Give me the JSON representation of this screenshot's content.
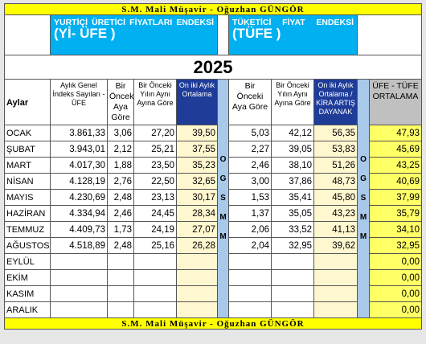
{
  "header": {
    "top": "S.M. Mali Müşavir   - Oğuzhan GÜNGÖR"
  },
  "left_box": {
    "title": "YURTİÇİ ÜRETİCİ FİYATLARI ENDEKSİ",
    "code": "(Yİ- ÜFE )"
  },
  "right_box": {
    "title": "TÜKETİCİ FİYAT ENDEKSİ",
    "code": "(TÜFE )"
  },
  "year": "2025",
  "columns": [
    "Aylar",
    "Aylık Genel İndeks Sayıları - ÜFE",
    "Bir Önceki Aya Göre",
    "Bir Önceki Yılın Aynı Ayına Göre",
    "On iki Aylık Ortalama",
    "Bir Önceki Aya Göre",
    "Bir Önceki Yılın Aynı Ayına Göre",
    "On iki Aylık Ortalama / KİRA ARTIŞ DAYANAK",
    "ÜFE - TÜFE ORTALAMA"
  ],
  "gap_columns": [
    {
      "letters": [
        "O",
        "G",
        "S",
        "M",
        "M"
      ]
    },
    {
      "letters": [
        "O",
        "G",
        "S",
        "M",
        "M"
      ]
    }
  ],
  "rows": [
    {
      "month": "OCAK",
      "values": [
        "3.861,33",
        "3,06",
        "27,20",
        "39,50",
        "5,03",
        "42,12",
        "56,35",
        "47,93"
      ]
    },
    {
      "month": "ŞUBAT",
      "values": [
        "3.943,01",
        "2,12",
        "25,21",
        "37,55",
        "2,27",
        "39,05",
        "53,83",
        "45,69"
      ]
    },
    {
      "month": "MART",
      "values": [
        "4.017,30",
        "1,88",
        "23,50",
        "35,23",
        "2,46",
        "38,10",
        "51,26",
        "43,25"
      ]
    },
    {
      "month": "NİSAN",
      "values": [
        "4.128,19",
        "2,76",
        "22,50",
        "32,65",
        "3,00",
        "37,86",
        "48,73",
        "40,69"
      ]
    },
    {
      "month": "MAYIS",
      "values": [
        "4.230,69",
        "2,48",
        "23,13",
        "30,17",
        "1,53",
        "35,41",
        "45,80",
        "37,99"
      ]
    },
    {
      "month": "HAZİRAN",
      "values": [
        "4.334,94",
        "2,46",
        "24,45",
        "28,34",
        "1,37",
        "35,05",
        "43,23",
        "35,79"
      ]
    },
    {
      "month": "TEMMUZ",
      "values": [
        "4.409,73",
        "1,73",
        "24,19",
        "27,07",
        "2,06",
        "33,52",
        "41,13",
        "34,10"
      ]
    },
    {
      "month": "AĞUSTOS",
      "values": [
        "4.518,89",
        "2,48",
        "25,16",
        "26,28",
        "2,04",
        "32,95",
        "39,62",
        "32,95"
      ]
    },
    {
      "month": "EYLÜL",
      "values": [
        null,
        null,
        null,
        null,
        null,
        null,
        null,
        "0,00"
      ]
    },
    {
      "month": "EKİM",
      "values": [
        null,
        null,
        null,
        null,
        null,
        null,
        null,
        "0,00"
      ]
    },
    {
      "month": "KASIM",
      "values": [
        null,
        null,
        null,
        null,
        null,
        null,
        null,
        "0,00"
      ]
    },
    {
      "month": "ARALIK",
      "values": [
        null,
        null,
        null,
        null,
        null,
        null,
        null,
        "0,00"
      ]
    }
  ],
  "footer": {
    "bottom": "S.M. Mali Müşavir   - Oğuzhan GÜNGÖR"
  }
}
